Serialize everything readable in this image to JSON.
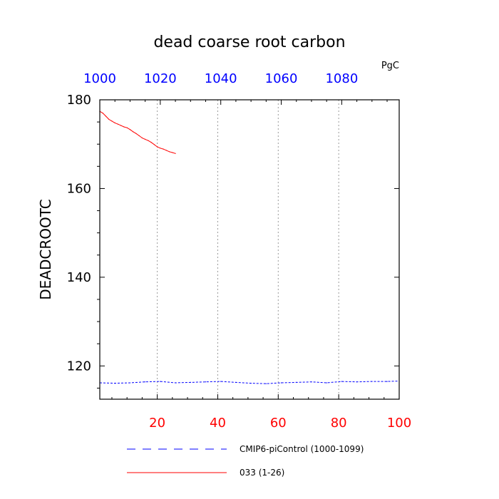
{
  "chart_data": {
    "type": "line",
    "title": "dead coarse root carbon",
    "units_label": "PgC",
    "ylabel": "DEADCROOTC",
    "xlabel": "",
    "bottom_axis": {
      "range": [
        1,
        100
      ],
      "ticks": [
        20,
        40,
        60,
        80,
        100
      ],
      "tick_labels": [
        "20",
        "40",
        "60",
        "80",
        "100"
      ],
      "color": "#ff0000"
    },
    "top_axis": {
      "range": [
        1000,
        1099
      ],
      "ticks": [
        1000,
        1020,
        1040,
        1060,
        1080
      ],
      "tick_labels": [
        "1000",
        "1020",
        "1040",
        "1060",
        "1080"
      ],
      "color": "#0000ff"
    },
    "y_axis": {
      "range": [
        112.5,
        180
      ],
      "ticks": [
        120,
        140,
        160,
        180
      ],
      "tick_labels": [
        "120",
        "140",
        "160",
        "180"
      ],
      "minor_step": 5
    },
    "grid": "vertical dotted at major bottom ticks",
    "legend_position": "bottom",
    "series": [
      {
        "name": "CMIP6-piControl (1000-1099)",
        "color": "#0000ff",
        "dash": "dashed",
        "axis": "top",
        "x": [
          1000,
          1005,
          1010,
          1015,
          1020,
          1025,
          1030,
          1035,
          1040,
          1045,
          1050,
          1055,
          1060,
          1065,
          1070,
          1075,
          1080,
          1085,
          1090,
          1095,
          1099
        ],
        "y": [
          116.2,
          116.1,
          116.2,
          116.4,
          116.5,
          116.2,
          116.3,
          116.4,
          116.5,
          116.3,
          116.1,
          116.0,
          116.2,
          116.3,
          116.4,
          116.2,
          116.5,
          116.4,
          116.5,
          116.5,
          116.6
        ]
      },
      {
        "name": "033 (1-26)",
        "color": "#ff0000",
        "dash": "solid",
        "axis": "bottom",
        "x": [
          1,
          2,
          3,
          4,
          5,
          6,
          7,
          8,
          9,
          10,
          11,
          12,
          13,
          14,
          15,
          16,
          17,
          18,
          19,
          20,
          21,
          22,
          23,
          24,
          25,
          26
        ],
        "y": [
          177.4,
          177.0,
          176.3,
          175.6,
          175.2,
          174.8,
          174.5,
          174.2,
          173.9,
          173.7,
          173.3,
          172.8,
          172.4,
          171.9,
          171.4,
          171.1,
          170.8,
          170.4,
          169.9,
          169.4,
          169.1,
          168.9,
          168.6,
          168.3,
          168.1,
          167.9
        ]
      }
    ]
  }
}
